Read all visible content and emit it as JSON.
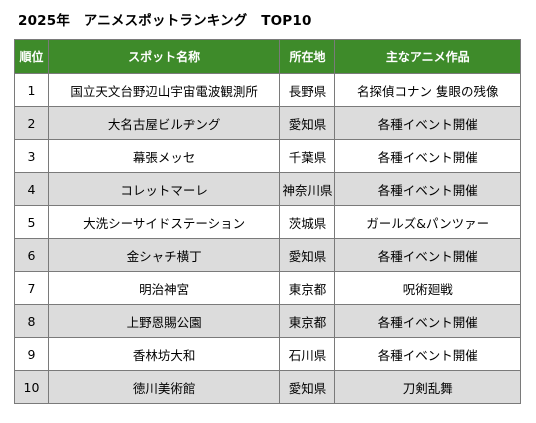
{
  "title": "2025年　アニメスポットランキング　TOP10",
  "table": {
    "headers": [
      "順位",
      "スポット名称",
      "所在地",
      "主なアニメ作品"
    ],
    "rows": [
      {
        "rank": "1",
        "spot": "国立天文台野辺山宇宙電波観測所",
        "pref": "長野県",
        "work": "名探偵コナン 隻眼の残像"
      },
      {
        "rank": "2",
        "spot": "大名古屋ビルヂング",
        "pref": "愛知県",
        "work": "各種イベント開催"
      },
      {
        "rank": "3",
        "spot": "幕張メッセ",
        "pref": "千葉県",
        "work": "各種イベント開催"
      },
      {
        "rank": "4",
        "spot": "コレットマーレ",
        "pref": "神奈川県",
        "work": "各種イベント開催"
      },
      {
        "rank": "5",
        "spot": "大洗シーサイドステーション",
        "pref": "茨城県",
        "work": "ガールズ&パンツァー"
      },
      {
        "rank": "6",
        "spot": "金シャチ横丁",
        "pref": "愛知県",
        "work": "各種イベント開催"
      },
      {
        "rank": "7",
        "spot": "明治神宮",
        "pref": "東京都",
        "work": "呪術廻戦"
      },
      {
        "rank": "8",
        "spot": "上野恩賜公園",
        "pref": "東京都",
        "work": "各種イベント開催"
      },
      {
        "rank": "9",
        "spot": "香林坊大和",
        "pref": "石川県",
        "work": "各種イベント開催"
      },
      {
        "rank": "10",
        "spot": "徳川美術館",
        "pref": "愛知県",
        "work": "刀剣乱舞"
      }
    ]
  },
  "colors": {
    "header_bg": "#3e8b2a",
    "header_text": "#ffffff",
    "stripe_bg": "#dcdcdc"
  }
}
